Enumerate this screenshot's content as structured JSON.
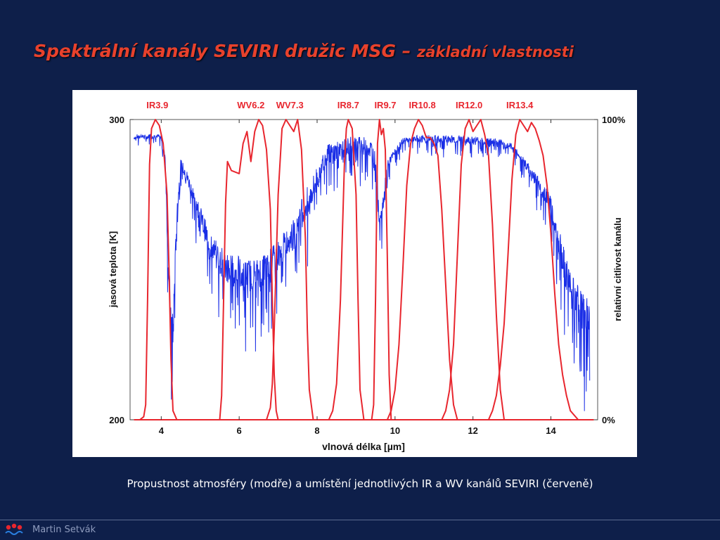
{
  "title": {
    "main": "Spektrální kanály SEVIRI družic MSG",
    "separator": " – ",
    "sub": "základní vlastnosti"
  },
  "caption": "Propustnost atmosféry (modře) a umístění jednotlivých IR a WV kanálů SEVIRI (červeně)",
  "footer": {
    "author": "Martin Setvák"
  },
  "colors": {
    "background": "#0e1f4a",
    "title": "#e8412c",
    "transmission": "#1a2ee6",
    "channels": "#e8262e"
  },
  "chart_data": {
    "type": "line",
    "title": "",
    "xlabel": "vlnová délka [µm]",
    "ylabel": "jasová teplota [K]",
    "ylabel_right": "relativní citlivost kanálu",
    "xlim": [
      3.2,
      15.2
    ],
    "ylim": [
      200,
      300
    ],
    "ylim_right": [
      0,
      100
    ],
    "x_ticks": [
      "4",
      "6",
      "8",
      "10",
      "12",
      "14"
    ],
    "y_ticks": [
      "300",
      "200"
    ],
    "y_ticks_right": [
      "100%",
      "0%"
    ],
    "grid": false,
    "series": [
      {
        "type": "line",
        "x": [
          3.3,
          3.4,
          3.5,
          3.6,
          3.7,
          3.8,
          3.9,
          4.0,
          4.1,
          4.15,
          4.2,
          4.25,
          4.3,
          4.4,
          4.5,
          4.6,
          4.8,
          5.0,
          5.2,
          5.4,
          5.6,
          5.8,
          6.0,
          6.2,
          6.4,
          6.6,
          6.8,
          7.0,
          7.2,
          7.4,
          7.6,
          7.8,
          8.0,
          8.2,
          8.4,
          8.6,
          8.8,
          9.0,
          9.2,
          9.4,
          9.5,
          9.6,
          9.7,
          9.8,
          10.0,
          10.2,
          10.5,
          11.0,
          11.5,
          12.0,
          12.5,
          13.0,
          13.3,
          13.6,
          14.0,
          14.2,
          14.4,
          14.6,
          14.8,
          15.0
        ],
        "y": [
          294,
          294.5,
          294.5,
          294,
          294.5,
          294.5,
          294.5,
          294,
          288,
          265,
          245,
          235,
          228,
          268,
          285,
          283,
          276,
          268,
          260,
          255,
          252,
          250,
          249,
          248,
          248.5,
          250,
          252,
          255,
          259,
          263,
          268,
          274,
          280,
          288,
          289,
          290,
          291,
          291.5,
          291,
          290,
          285,
          268,
          272,
          285,
          289,
          293,
          293.5,
          293.5,
          293.5,
          293,
          292.5,
          291,
          286,
          280,
          272,
          260,
          248,
          240,
          236,
          234
        ]
      },
      {
        "name": "IR3.9",
        "x": [
          3.3,
          3.45,
          3.55,
          3.6,
          3.65,
          3.7,
          3.75,
          3.85,
          3.95,
          4.05,
          4.15,
          4.2,
          4.25,
          4.3,
          4.4,
          4.55,
          15.1
        ],
        "y": [
          0,
          0,
          1,
          5,
          40,
          85,
          97,
          100,
          98,
          92,
          75,
          50,
          20,
          3,
          0,
          0,
          0
        ]
      },
      {
        "name": "WV6.2",
        "x": [
          3.3,
          5.5,
          5.55,
          5.6,
          5.65,
          5.7,
          5.8,
          6.0,
          6.1,
          6.2,
          6.3,
          6.4,
          6.5,
          6.6,
          6.7,
          6.8,
          6.85,
          6.9,
          6.95,
          7.0,
          15.1
        ],
        "y": [
          0,
          0,
          8,
          40,
          72,
          86,
          83,
          82,
          92,
          96,
          86,
          96,
          100,
          98,
          90,
          70,
          40,
          15,
          3,
          0,
          0
        ]
      },
      {
        "name": "WV7.3",
        "x": [
          3.3,
          6.7,
          6.8,
          6.85,
          6.9,
          7.0,
          7.1,
          7.2,
          7.3,
          7.4,
          7.5,
          7.6,
          7.7,
          7.75,
          7.8,
          7.9,
          15.1
        ],
        "y": [
          0,
          0,
          4,
          12,
          30,
          75,
          97,
          100,
          98,
          96,
          100,
          90,
          60,
          30,
          10,
          0,
          0
        ]
      },
      {
        "name": "IR8.7",
        "x": [
          3.3,
          8.3,
          8.4,
          8.5,
          8.6,
          8.7,
          8.75,
          8.8,
          8.9,
          9.0,
          9.05,
          9.1,
          9.2,
          15.1
        ],
        "y": [
          0,
          0,
          3,
          12,
          40,
          85,
          97,
          100,
          97,
          75,
          40,
          10,
          0,
          0
        ]
      },
      {
        "name": "IR9.7",
        "x": [
          3.3,
          9.4,
          9.45,
          9.5,
          9.55,
          9.6,
          9.65,
          9.7,
          9.75,
          9.8,
          9.85,
          9.9,
          15.1
        ],
        "y": [
          0,
          0,
          5,
          40,
          92,
          100,
          95,
          97,
          90,
          55,
          15,
          0,
          0
        ]
      },
      {
        "name": "IR10.8",
        "x": [
          3.3,
          9.8,
          9.9,
          10.0,
          10.1,
          10.2,
          10.3,
          10.4,
          10.5,
          10.6,
          10.7,
          10.8,
          10.9,
          11.0,
          11.1,
          11.2,
          11.3,
          11.4,
          11.5,
          11.6,
          15.1
        ],
        "y": [
          0,
          0,
          3,
          10,
          25,
          50,
          78,
          92,
          97,
          100,
          98,
          94,
          94,
          92,
          88,
          70,
          45,
          20,
          5,
          0,
          0
        ]
      },
      {
        "name": "IR12.0",
        "x": [
          3.3,
          11.2,
          11.3,
          11.4,
          11.5,
          11.6,
          11.7,
          11.8,
          11.9,
          12.0,
          12.1,
          12.2,
          12.3,
          12.4,
          12.5,
          12.6,
          12.7,
          12.8,
          15.1
        ],
        "y": [
          0,
          0,
          3,
          10,
          25,
          55,
          85,
          97,
          100,
          96,
          98,
          100,
          95,
          88,
          65,
          35,
          10,
          0,
          0
        ]
      },
      {
        "name": "IR13.4",
        "x": [
          3.3,
          12.4,
          12.5,
          12.6,
          12.7,
          12.8,
          12.9,
          13.0,
          13.1,
          13.2,
          13.3,
          13.4,
          13.5,
          13.6,
          13.7,
          13.8,
          13.9,
          14.0,
          14.1,
          14.2,
          14.3,
          14.4,
          14.5,
          14.7,
          14.8,
          15.1
        ],
        "y": [
          0,
          0,
          3,
          8,
          18,
          32,
          55,
          80,
          95,
          100,
          98,
          96,
          99,
          97,
          93,
          88,
          78,
          62,
          42,
          25,
          15,
          8,
          3,
          0,
          0,
          0
        ]
      }
    ],
    "labels": [
      {
        "text": "IR3.9",
        "x": 3.9
      },
      {
        "text": "WV6.2",
        "x": 6.3
      },
      {
        "text": "WV7.3",
        "x": 7.3
      },
      {
        "text": "IR8.7",
        "x": 8.8
      },
      {
        "text": "IR9.7",
        "x": 9.75
      },
      {
        "text": "IR10.8",
        "x": 10.7
      },
      {
        "text": "IR12.0",
        "x": 11.9
      },
      {
        "text": "IR13.4",
        "x": 13.2
      }
    ]
  }
}
